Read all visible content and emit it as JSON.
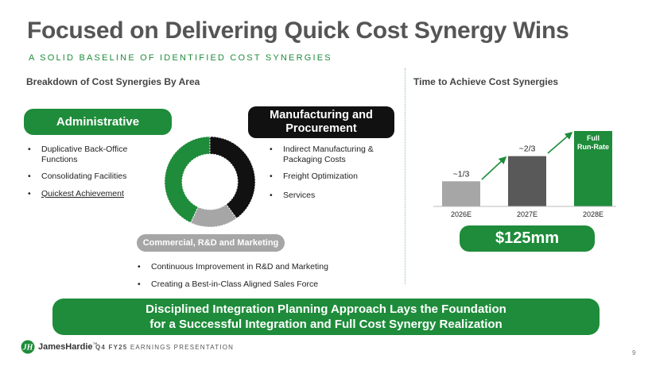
{
  "header": {
    "title": "Focused on Delivering Quick Cost Synergy Wins",
    "subtitle": "A SOLID BASELINE OF IDENTIFIED COST SYNERGIES"
  },
  "left_section": {
    "heading": "Breakdown of Cost Synergies By Area",
    "administrative": {
      "label": "Administrative",
      "items": [
        "Duplicative Back-Office Functions",
        "Consolidating Facilities",
        "Quickest Achievement"
      ]
    },
    "manufacturing": {
      "label_line1": "Manufacturing and",
      "label_line2": "Procurement",
      "items": [
        "Indirect Manufacturing & Packaging Costs",
        "Freight Optimization",
        "Services"
      ]
    },
    "commercial": {
      "label": "Commercial, R&D and Marketing",
      "items": [
        "Continuous Improvement in R&D and Marketing",
        "Creating a Best-in-Class Aligned Sales Force"
      ]
    },
    "donut": {
      "segments": [
        {
          "area": "Manufacturing and Procurement",
          "share": 0.4,
          "color": "#111111"
        },
        {
          "area": "Commercial, R&D and Marketing",
          "share": 0.17,
          "color": "#a6a6a6"
        },
        {
          "area": "Administrative",
          "share": 0.43,
          "color": "#1e8c3a"
        }
      ]
    }
  },
  "right_section": {
    "heading": "Time to Achieve Cost Synergies",
    "total": "$125mm"
  },
  "chart_data": {
    "type": "bar",
    "categories": [
      "2026E",
      "2027E",
      "2028E"
    ],
    "values": [
      0.3333,
      0.6667,
      1.0
    ],
    "data_labels": [
      "~1/3",
      "~2/3",
      "Full Run-Rate"
    ],
    "colors": [
      "#a6a6a6",
      "#595959",
      "#1e8c3a"
    ],
    "ylim": [
      0,
      1
    ],
    "grid": false,
    "title": "Time to Achieve Cost Synergies"
  },
  "footer": {
    "banner_line1": "Disciplined Integration Planning Approach Lays the Foundation",
    "banner_line2": "for a Successful Integration and Full Cost Synergy Realization",
    "logo_text": "JamesHardie",
    "logo_mark": "™",
    "presentation_prefix": "Q4 FY25",
    "presentation_label": "EARNINGS PRESENTATION",
    "page_number": "9"
  },
  "colors": {
    "brand_green": "#1e8c3a",
    "title_gray": "#555555",
    "dark": "#111111",
    "light_gray": "#a6a6a6"
  }
}
